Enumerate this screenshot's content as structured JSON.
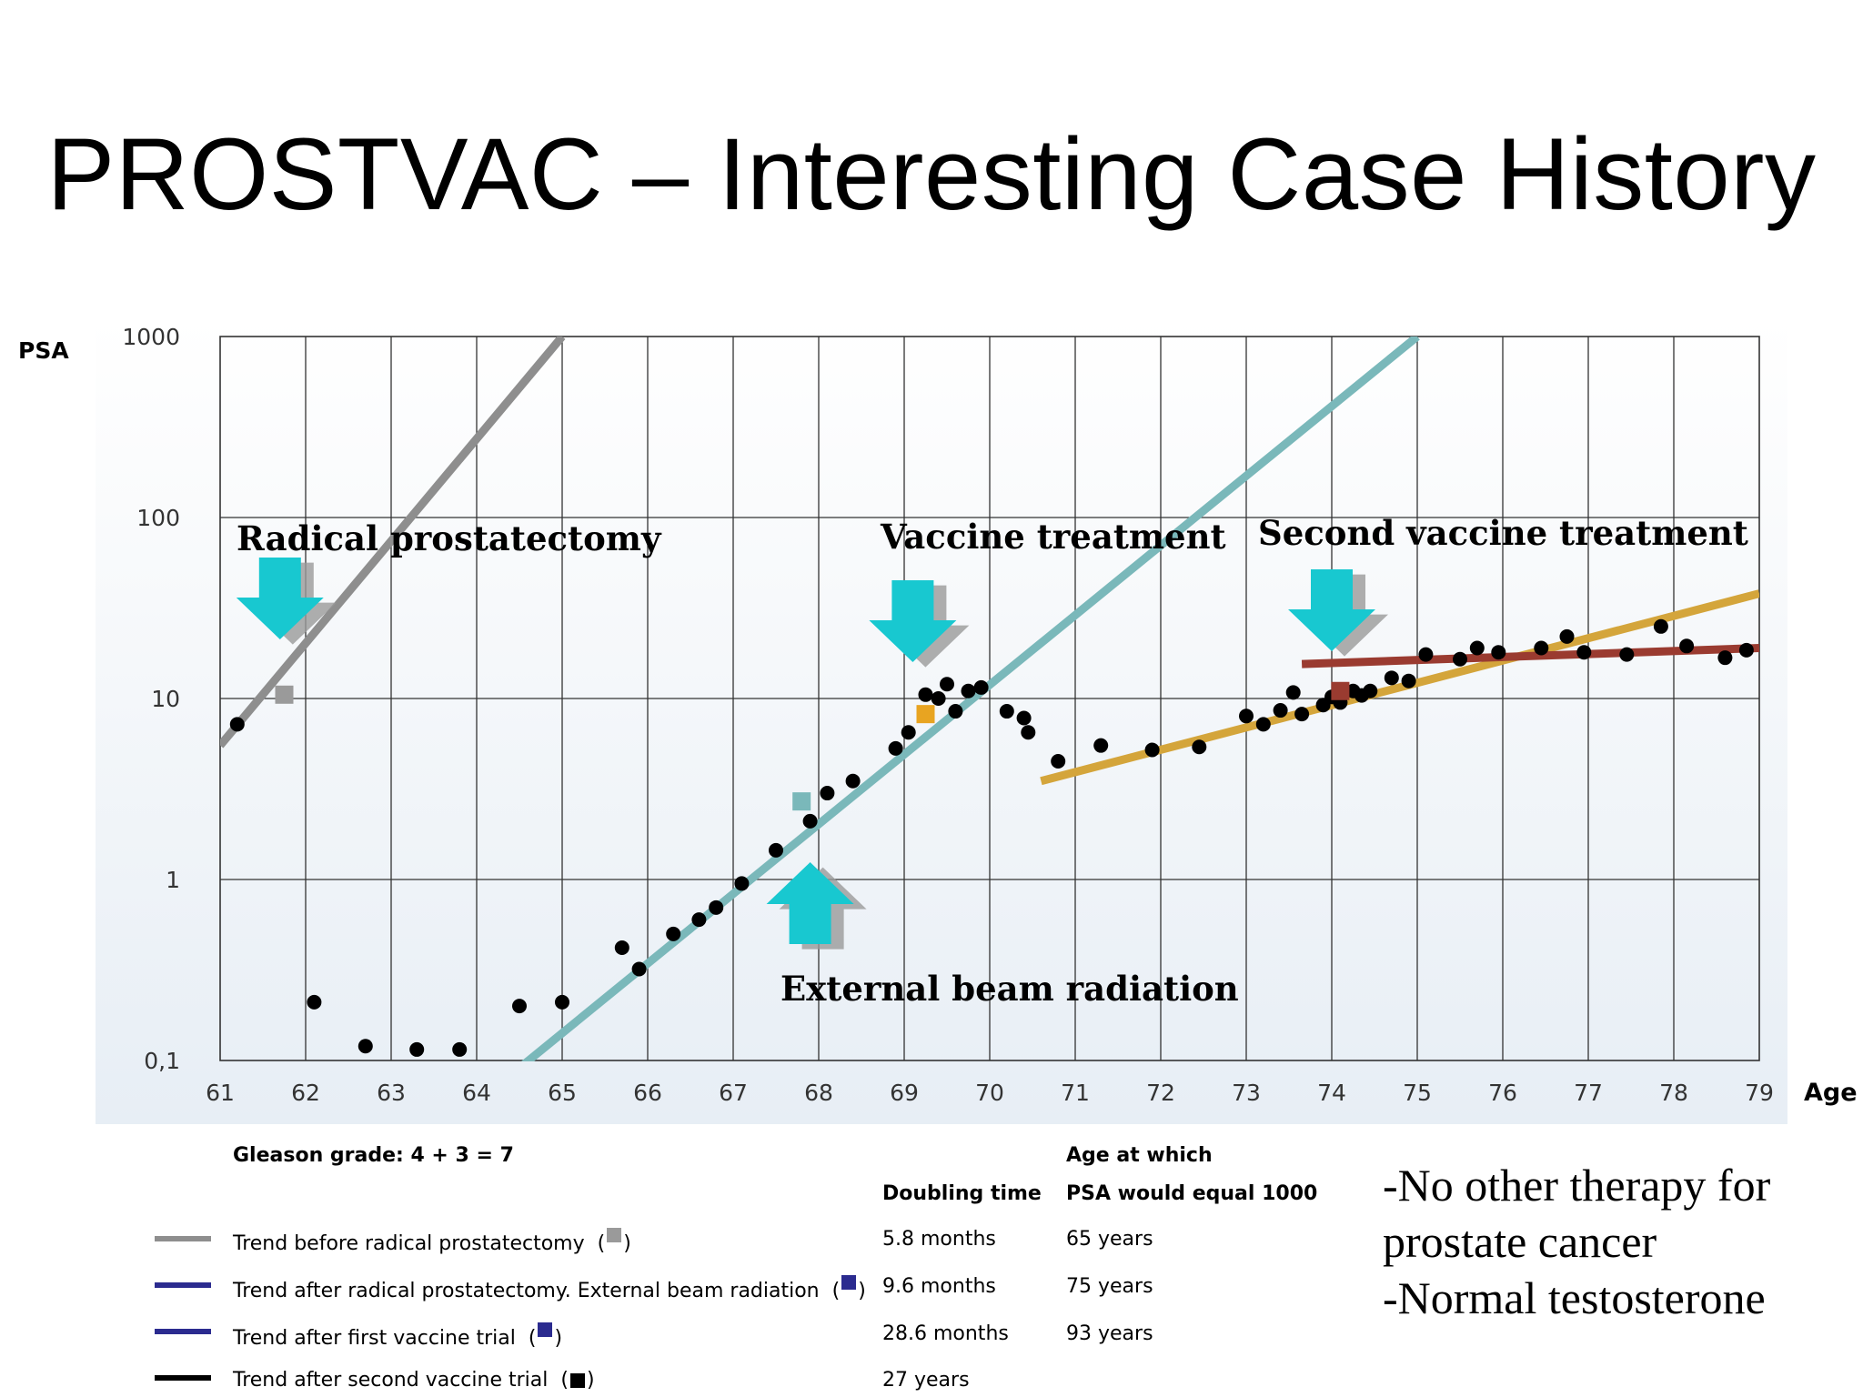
{
  "title": "PROSTVAC – Interesting Case History",
  "colors": {
    "gray": "#8e8e8e",
    "teal": "#7ab8ba",
    "gold": "#d4a53b",
    "darkred": "#9a3b30",
    "navy": "#2b2b8f",
    "black": "#000000",
    "arrow": "#18c8d0",
    "grid": "#333333",
    "orange": "#e8a421"
  },
  "chart_data": {
    "type": "scatter",
    "y_scale": "log",
    "ylabel": "PSA",
    "xlabel": "Age",
    "xlim": [
      61,
      79
    ],
    "ylim": [
      0.1,
      1000
    ],
    "x_ticks": [
      "61",
      "62",
      "63",
      "64",
      "65",
      "66",
      "67",
      "68",
      "69",
      "70",
      "71",
      "72",
      "73",
      "74",
      "75",
      "76",
      "77",
      "78",
      "79"
    ],
    "y_ticks": [
      {
        "value": 1000,
        "label": "1000"
      },
      {
        "value": 100,
        "label": "100"
      },
      {
        "value": 10,
        "label": "10"
      },
      {
        "value": 1,
        "label": "1"
      },
      {
        "value": 0.1,
        "label": "0,1"
      }
    ],
    "grid": true,
    "series": [
      {
        "marker": "circle",
        "color": "#000000",
        "points": [
          [
            61.2,
            7.2
          ],
          [
            62.1,
            0.21
          ],
          [
            62.7,
            0.12
          ],
          [
            63.3,
            0.115
          ],
          [
            63.8,
            0.115
          ],
          [
            64.5,
            0.2
          ],
          [
            65.0,
            0.21
          ],
          [
            65.7,
            0.42
          ],
          [
            65.9,
            0.32
          ],
          [
            66.3,
            0.5
          ],
          [
            66.6,
            0.6
          ],
          [
            66.8,
            0.7
          ],
          [
            67.1,
            0.95
          ],
          [
            67.5,
            1.45
          ],
          [
            67.9,
            2.1
          ],
          [
            68.1,
            3.0
          ],
          [
            68.4,
            3.5
          ],
          [
            68.9,
            5.3
          ],
          [
            69.05,
            6.5
          ],
          [
            69.25,
            10.5
          ],
          [
            69.4,
            10.0
          ],
          [
            69.5,
            12.0
          ],
          [
            69.6,
            8.5
          ],
          [
            69.75,
            11.0
          ],
          [
            69.9,
            11.5
          ],
          [
            70.2,
            8.5
          ],
          [
            70.4,
            7.8
          ],
          [
            70.45,
            6.5
          ],
          [
            70.8,
            4.5
          ],
          [
            71.3,
            5.5
          ],
          [
            71.9,
            5.2
          ],
          [
            72.45,
            5.4
          ],
          [
            73.0,
            8.0
          ],
          [
            73.2,
            7.2
          ],
          [
            73.4,
            8.6
          ],
          [
            73.55,
            10.8
          ],
          [
            73.65,
            8.2
          ],
          [
            73.9,
            9.2
          ],
          [
            74.0,
            10.2
          ],
          [
            74.1,
            9.5
          ],
          [
            74.25,
            11.0
          ],
          [
            74.35,
            10.4
          ],
          [
            74.45,
            11.0
          ],
          [
            74.7,
            13.0
          ],
          [
            74.9,
            12.5
          ],
          [
            75.1,
            17.5
          ],
          [
            75.5,
            16.5
          ],
          [
            75.7,
            19.0
          ],
          [
            75.95,
            18.0
          ],
          [
            76.45,
            19.0
          ],
          [
            76.75,
            22.0
          ],
          [
            76.95,
            18.0
          ],
          [
            77.45,
            17.5
          ],
          [
            77.85,
            25.0
          ],
          [
            78.15,
            19.5
          ],
          [
            78.6,
            16.8
          ],
          [
            78.85,
            18.5
          ]
        ]
      },
      {
        "marker": "square",
        "points": [
          {
            "x": 61.75,
            "y": 10.5,
            "color": "#9a9a9a"
          },
          {
            "x": 67.8,
            "y": 2.7,
            "color": "#7ab8ba"
          },
          {
            "x": 69.25,
            "y": 8.2,
            "color": "#e8a421"
          },
          {
            "x": 74.1,
            "y": 11.0,
            "color": "#9a3b30"
          }
        ]
      }
    ],
    "trend_lines": [
      {
        "color": "#8e8e8e",
        "from": [
          61.0,
          5.5
        ],
        "to": [
          65.0,
          1000
        ]
      },
      {
        "color": "#7ab8ba",
        "from": [
          64.55,
          0.095
        ],
        "to": [
          75.0,
          1000
        ]
      },
      {
        "color": "#d4a53b",
        "from": [
          70.6,
          3.5
        ],
        "to": [
          79.0,
          38
        ]
      },
      {
        "color": "#9a3b30",
        "from": [
          73.65,
          15.5
        ],
        "to": [
          79.0,
          19
        ]
      }
    ],
    "annotations": [
      {
        "text": "Radical prostatectomy",
        "arrow": "down",
        "age": 61.7
      },
      {
        "text": "Vaccine treatment",
        "arrow": "down",
        "age": 69.1
      },
      {
        "text": "Second vaccine treatment",
        "arrow": "down",
        "age": 74.0
      },
      {
        "text": "External beam radiation",
        "arrow": "up",
        "age": 67.9
      }
    ]
  },
  "legend": {
    "gleason": "Gleason grade: 4 + 3 = 7",
    "col_doubling": "Doubling time",
    "col_age_line1": "Age at which",
    "col_age_line2": "PSA would equal 1000",
    "rows": [
      {
        "label": "Trend before radical prostatectomy",
        "line_color": "#8e8e8e",
        "symbol_color": "#9a9a9a",
        "doubling": "5.8 months",
        "age": "65 years"
      },
      {
        "label": "Trend after radical prostatectomy. External beam radiation",
        "line_color": "#2b2b8f",
        "symbol_color": "#2b2b8f",
        "doubling": "9.6 months",
        "age": "75 years"
      },
      {
        "label": "Trend after first vaccine trial",
        "line_color": "#2b2b8f",
        "symbol_color": "#2b2b8f",
        "doubling": "28.6 months",
        "age": "93 years"
      },
      {
        "label": "Trend after second vaccine trial",
        "line_color": "#000000",
        "symbol_color": "#000000",
        "doubling": "27 years",
        "age": ""
      }
    ]
  },
  "notes": [
    "-No other therapy for",
    "prostate cancer",
    "-Normal testosterone"
  ]
}
